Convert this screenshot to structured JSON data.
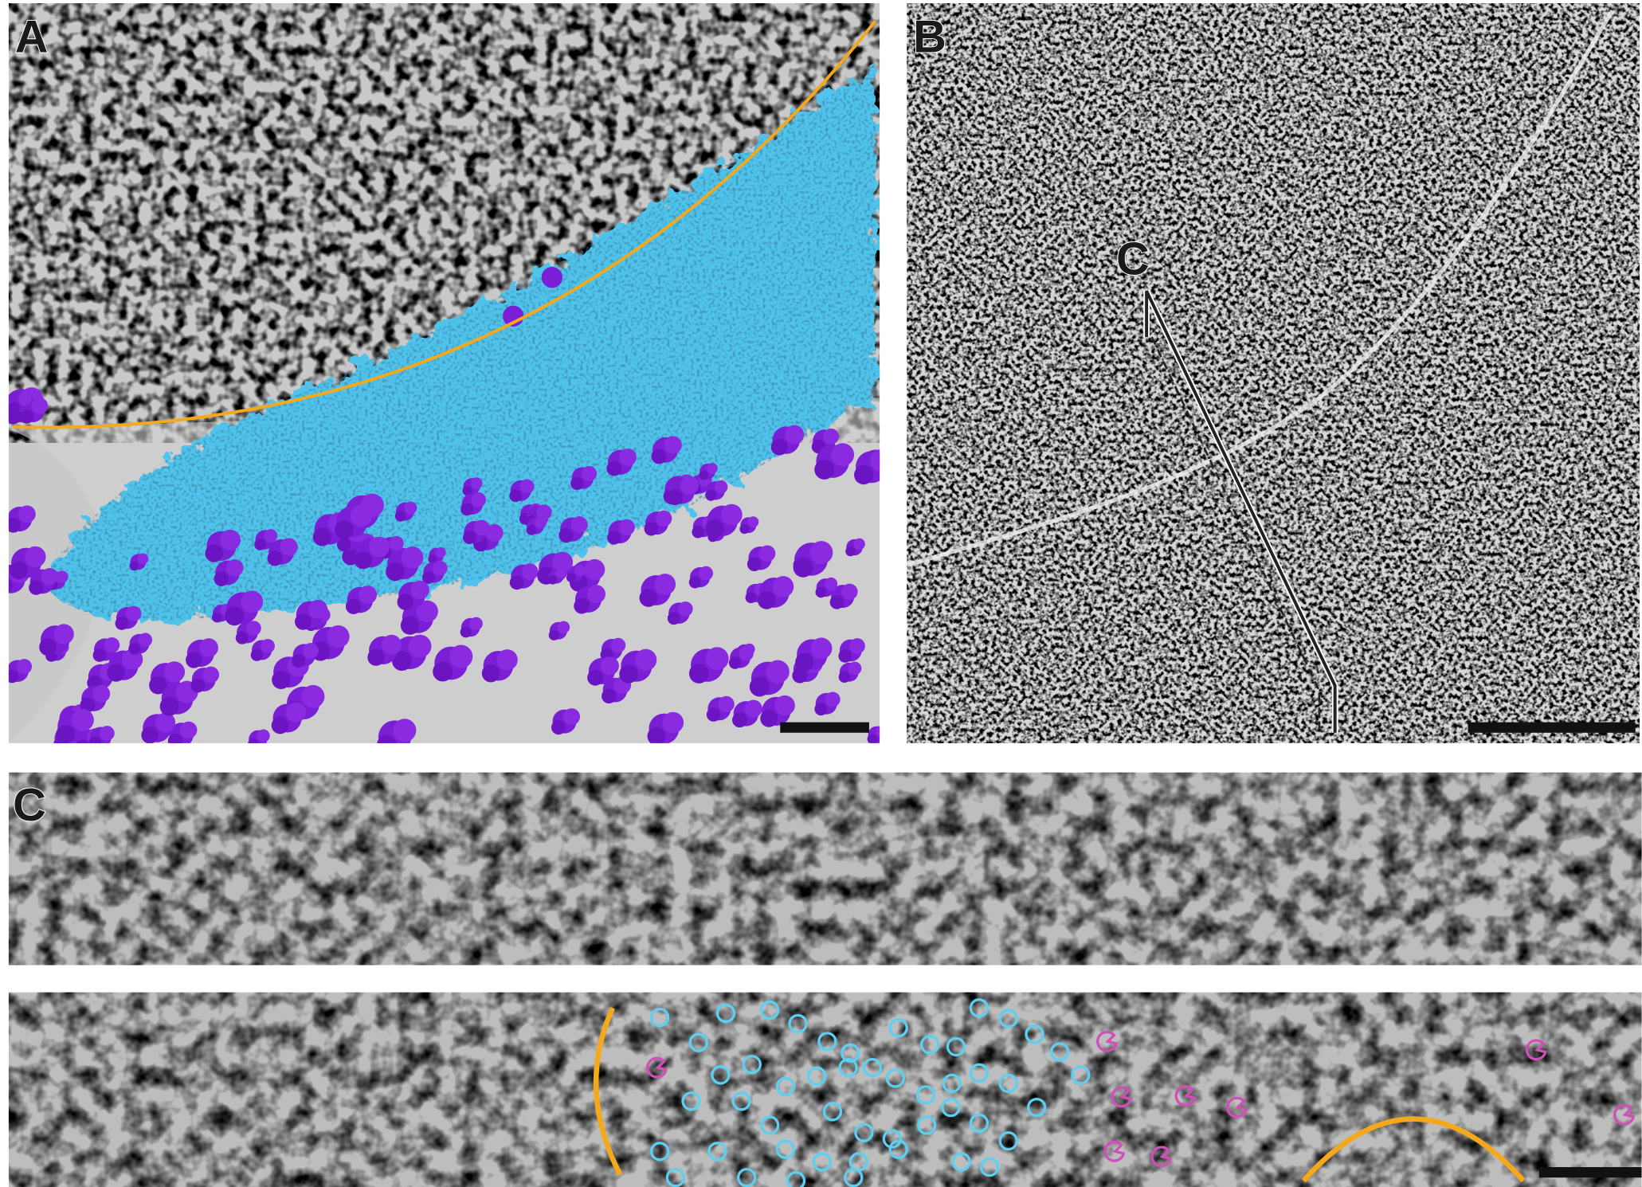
{
  "panel_labels": [
    "A",
    "B",
    "C"
  ],
  "annotations": {
    "slice_marker_label": "C"
  }
}
